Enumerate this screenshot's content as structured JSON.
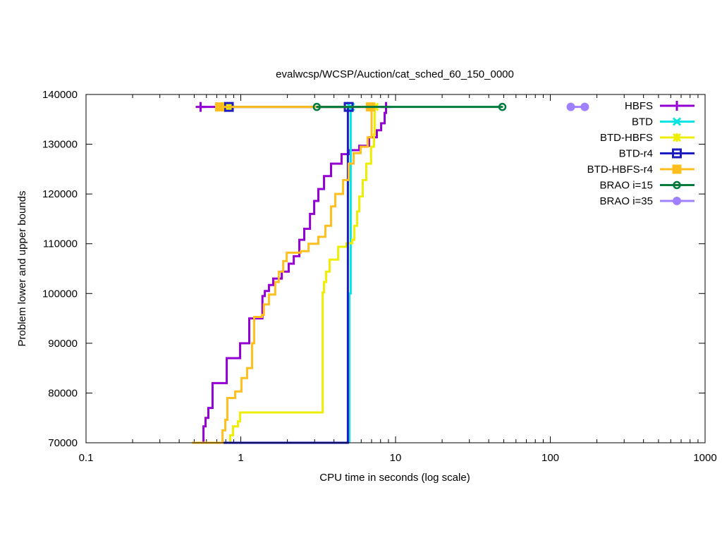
{
  "chart_data": {
    "type": "line",
    "title": "evalwcsp/WCSP/Auction/cat_sched_60_150_0000",
    "xlabel": "CPU time in seconds (log scale)",
    "ylabel": "Problem lower and upper bounds",
    "xscale": "log",
    "xlim": [
      0.1,
      1000
    ],
    "ylim": [
      70000,
      140000
    ],
    "xticks": [
      "0.1",
      "1",
      "10",
      "100",
      "1000"
    ],
    "yticks": [
      "70000",
      "80000",
      "90000",
      "100000",
      "110000",
      "120000",
      "130000",
      "140000"
    ],
    "grid": false,
    "legend_position": "top-right",
    "series": [
      {
        "name": "HBFS",
        "color": "#9400d3",
        "marker": "plus",
        "lower": [
          [
            0.556,
            70000
          ],
          [
            0.574,
            73300
          ],
          [
            0.592,
            75000
          ],
          [
            0.617,
            77000
          ],
          [
            0.657,
            82000
          ],
          [
            0.811,
            87000
          ],
          [
            0.99,
            90000
          ],
          [
            1.134,
            95000
          ],
          [
            1.38,
            99500
          ],
          [
            1.43,
            100500
          ],
          [
            1.52,
            101700
          ],
          [
            1.62,
            103000
          ],
          [
            1.84,
            104400
          ],
          [
            2.04,
            106000
          ],
          [
            2.2,
            107500
          ],
          [
            2.39,
            110800
          ],
          [
            2.57,
            113000
          ],
          [
            2.8,
            116000
          ],
          [
            2.98,
            118600
          ],
          [
            3.17,
            121000
          ],
          [
            3.45,
            123600
          ],
          [
            3.83,
            126100
          ],
          [
            4.48,
            128000
          ],
          [
            4.98,
            128800
          ],
          [
            5.83,
            129700
          ],
          [
            6.74,
            131400
          ],
          [
            7.57,
            132800
          ],
          [
            8.07,
            134200
          ],
          [
            8.5,
            136300
          ],
          [
            8.68,
            137700
          ]
        ],
        "upper": [
          [
            0.55,
            137500
          ],
          [
            8.68,
            137500
          ]
        ]
      },
      {
        "name": "BTD",
        "color": "#00e5e5",
        "marker": "cross",
        "lower": [
          [
            5.03,
            70000
          ],
          [
            5.03,
            100000
          ],
          [
            5.13,
            137500
          ]
        ],
        "upper": [
          [
            5.13,
            137500
          ],
          [
            5.13,
            137500
          ]
        ]
      },
      {
        "name": "BTD-HBFS",
        "color": "#eeee00",
        "marker": "star",
        "lower": [
          [
            0.837,
            70000
          ],
          [
            0.855,
            71500
          ],
          [
            0.891,
            73300
          ],
          [
            0.959,
            74300
          ],
          [
            0.99,
            76100
          ],
          [
            3.38,
            100200
          ],
          [
            3.45,
            102300
          ],
          [
            3.56,
            104400
          ],
          [
            3.75,
            106800
          ],
          [
            4.26,
            109400
          ],
          [
            4.82,
            110100
          ],
          [
            5.25,
            110800
          ],
          [
            5.42,
            113600
          ],
          [
            5.65,
            116500
          ],
          [
            5.83,
            119500
          ],
          [
            6.14,
            122800
          ],
          [
            6.47,
            126100
          ],
          [
            6.95,
            129500
          ],
          [
            7.26,
            132000
          ],
          [
            7.33,
            137700
          ]
        ],
        "upper": [
          [
            0.837,
            137500
          ],
          [
            7.33,
            137500
          ]
        ]
      },
      {
        "name": "BTD-r4",
        "color": "#1c1cc0",
        "marker": "open-square",
        "lower": [
          [
            0.769,
            70000
          ],
          [
            4.92,
            70000
          ],
          [
            4.92,
            137500
          ]
        ],
        "upper": [
          [
            0.837,
            137500
          ],
          [
            4.98,
            137500
          ]
        ]
      },
      {
        "name": "BTD-HBFS-r4",
        "color": "#ffbf1f",
        "marker": "filled-square",
        "lower": [
          [
            0.485,
            70000
          ],
          [
            0.762,
            72500
          ],
          [
            0.794,
            74600
          ],
          [
            0.819,
            79000
          ],
          [
            0.92,
            80300
          ],
          [
            1.01,
            83000
          ],
          [
            1.099,
            85000
          ],
          [
            1.183,
            90000
          ],
          [
            1.22,
            95300
          ],
          [
            1.37,
            95700
          ],
          [
            1.41,
            97800
          ],
          [
            1.52,
            99800
          ],
          [
            1.67,
            102300
          ],
          [
            1.76,
            104400
          ],
          [
            1.88,
            106500
          ],
          [
            1.98,
            108200
          ],
          [
            2.44,
            108500
          ],
          [
            2.74,
            110000
          ],
          [
            3.17,
            111400
          ],
          [
            3.52,
            113600
          ],
          [
            3.83,
            117500
          ],
          [
            4.08,
            120000
          ],
          [
            4.58,
            122800
          ],
          [
            4.98,
            126100
          ],
          [
            5.36,
            128200
          ],
          [
            5.95,
            129500
          ],
          [
            6.6,
            131400
          ],
          [
            7.0,
            134200
          ],
          [
            7.0,
            137400
          ]
        ],
        "upper": [
          [
            0.73,
            137500
          ],
          [
            6.88,
            137500
          ]
        ]
      },
      {
        "name": "BRAO i=15",
        "color": "#007a3d",
        "marker": "open-circle",
        "lower": [],
        "upper": [
          [
            3.1,
            137500
          ],
          [
            49,
            137500
          ]
        ]
      },
      {
        "name": "BRAO i=35",
        "color": "#9f80ff",
        "marker": "filled-circle",
        "lower": [],
        "upper": [
          [
            135.6,
            137500
          ],
          [
            167,
            137500
          ]
        ]
      }
    ]
  }
}
